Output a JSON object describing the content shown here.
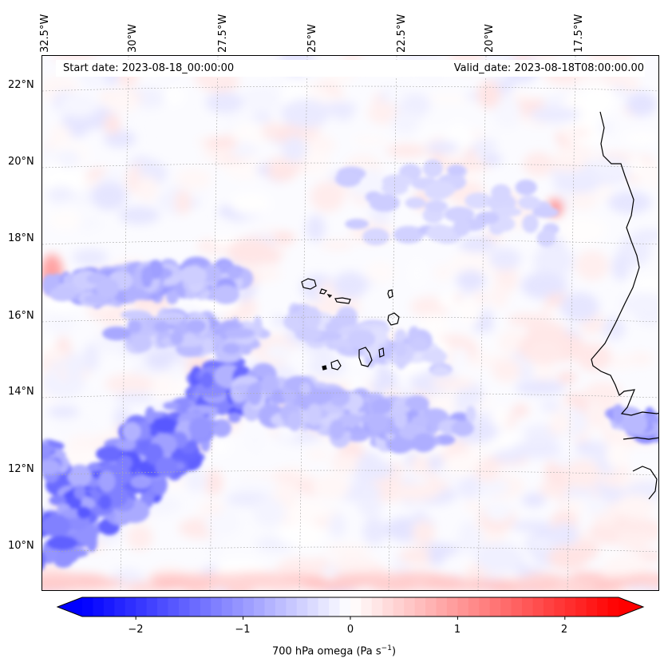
{
  "map": {
    "start_date": "Start date: 2023-08-18_00:00:00",
    "valid_date": "Valid_date: 2023-08-18T08:00:00.00",
    "lon_labels": [
      "32.5°W",
      "30°W",
      "27.5°W",
      "25°W",
      "22.5°W",
      "20°W",
      "17.5°W"
    ],
    "lat_labels": [
      "22°N",
      "20°N",
      "18°N",
      "16°N",
      "14°N",
      "12°N",
      "10°N"
    ],
    "field": "700 hPa omega",
    "colormap": "bwr",
    "colors": {
      "negative": "#0000ff",
      "zero": "#ffffff",
      "positive": "#ff0000",
      "coastline": "#000000",
      "grid": "#b0b0b0"
    }
  },
  "colorbar": {
    "ticks": [
      "−2",
      "−1",
      "0",
      "1",
      "2"
    ],
    "tick_values": [
      -2,
      -1,
      0,
      1,
      2
    ],
    "range": [
      -2.5,
      2.5
    ],
    "label": "700 hPa omega (Pa s",
    "label_sup": "−1",
    "label_end": ")",
    "extend": "both"
  }
}
